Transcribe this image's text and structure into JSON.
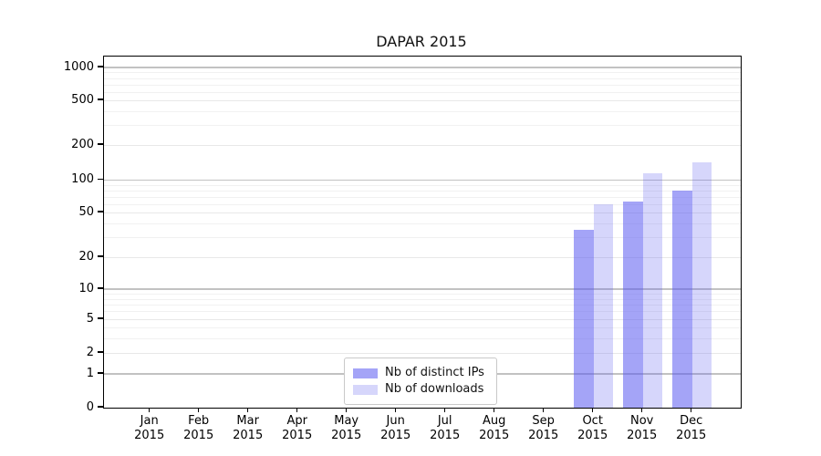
{
  "chart_data": {
    "type": "bar",
    "title": "DAPAR 2015",
    "year_label": "2015",
    "categories": [
      "Jan",
      "Feb",
      "Mar",
      "Apr",
      "May",
      "Jun",
      "Jul",
      "Aug",
      "Sep",
      "Oct",
      "Nov",
      "Dec"
    ],
    "series": [
      {
        "name": "Nb of distinct IPs",
        "color": "rgba(90,90,240,0.55)",
        "values": [
          null,
          null,
          null,
          null,
          null,
          null,
          null,
          null,
          null,
          35,
          63,
          80
        ]
      },
      {
        "name": "Nb of downloads",
        "color": "rgba(90,90,240,0.25)",
        "values": [
          null,
          null,
          null,
          null,
          null,
          null,
          null,
          null,
          null,
          60,
          115,
          142
        ]
      }
    ],
    "xlabel": "",
    "ylabel": "",
    "y_axis": {
      "scale": "symlog",
      "ticks": [
        0,
        1,
        2,
        5,
        10,
        20,
        50,
        100,
        200,
        500,
        1000
      ],
      "minor_ticks": [
        3,
        4,
        6,
        7,
        8,
        9,
        30,
        40,
        60,
        70,
        80,
        90,
        300,
        400,
        600,
        700,
        800,
        900
      ],
      "ylim": [
        0,
        1250
      ]
    },
    "grid": {
      "horizontal": true,
      "vertical": false
    },
    "legend": {
      "position": "bottom-center"
    }
  },
  "colors": {
    "bar_distinct_ips": "rgba(90,90,240,0.55)",
    "bar_downloads": "rgba(90,90,240,0.25)",
    "grid_power10": "#c2c2c2",
    "grid_labeled_tick": "#e8e8e8",
    "grid_minor": "#f1f1f1",
    "spine": "#000000",
    "legend_border": "#c9c9c9"
  }
}
